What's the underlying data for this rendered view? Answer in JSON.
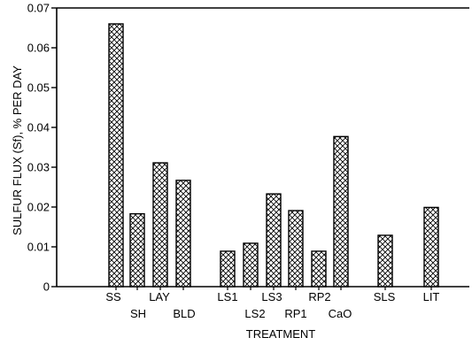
{
  "chart_data": {
    "type": "bar",
    "title": "",
    "xlabel": "TREATMENT",
    "ylabel": "SULFUR FLUX (Sf), % PER DAY",
    "ylim": [
      0,
      0.07
    ],
    "yticks": [
      0,
      0.01,
      0.02,
      0.03,
      0.04,
      0.05,
      0.06,
      0.07
    ],
    "ytick_labels": [
      "0",
      "0.01",
      "0.02",
      "0.03",
      "0.04",
      "0.05",
      "0.06",
      "0.07"
    ],
    "categories": [
      "SS",
      "SH",
      "LAY",
      "BLD",
      "LS1",
      "LS2",
      "LS3",
      "RP1",
      "RP2",
      "CaO",
      "SLS",
      "LIT"
    ],
    "values": [
      0.066,
      0.0183,
      0.0311,
      0.0267,
      0.0089,
      0.0109,
      0.0233,
      0.0191,
      0.0089,
      0.0377,
      0.0129,
      0.0199
    ],
    "grid": false,
    "legend": "none",
    "bar_pattern": "crosshatch"
  }
}
